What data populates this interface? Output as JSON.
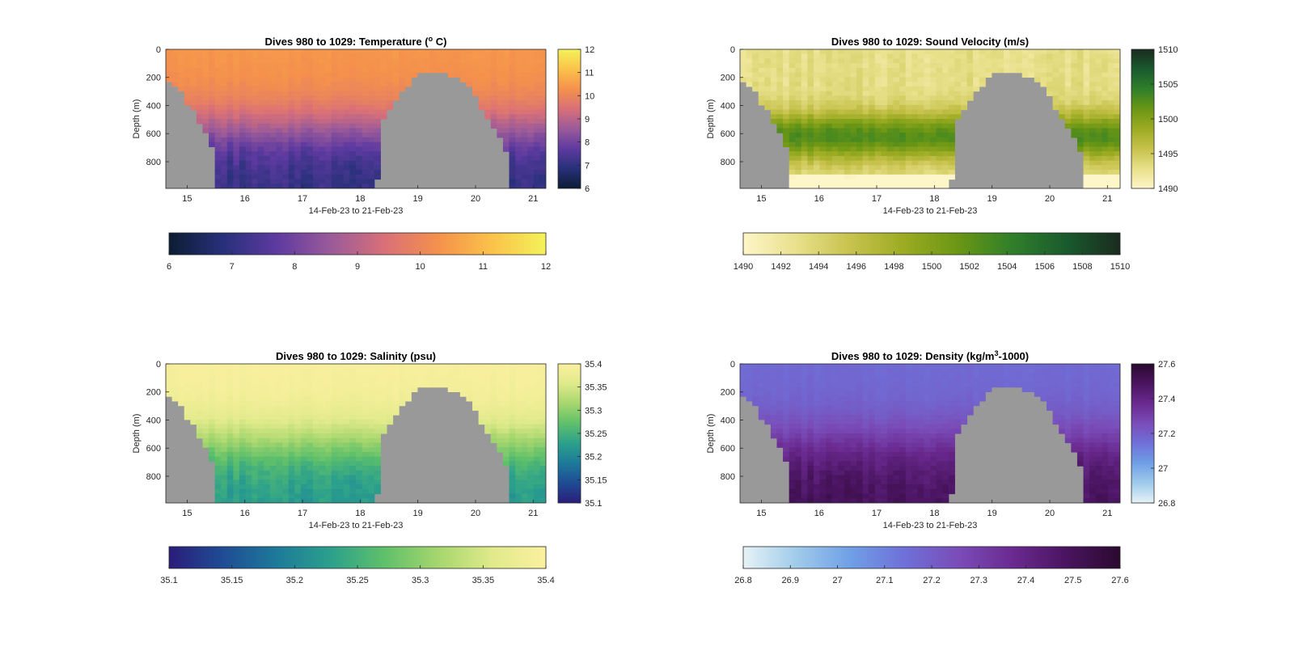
{
  "chart_data": [
    {
      "type": "heatmap",
      "title_prefix": "Dives 980 to 1029: Temperature (",
      "title_sup": "o",
      "title_suffix": " C)",
      "xlabel": "14-Feb-23 to 21-Feb-23",
      "ylabel": "Depth (m)",
      "xticks": [
        "15",
        "16",
        "17",
        "18",
        "19",
        "20",
        "21"
      ],
      "x_tick_values": [
        15,
        16,
        17,
        18,
        19,
        20,
        21
      ],
      "xlim": [
        14.63,
        21.22
      ],
      "yticks": [
        "0",
        "200",
        "400",
        "600",
        "800"
      ],
      "y_tick_values": [
        0,
        200,
        400,
        600,
        800
      ],
      "ylim": [
        0,
        990
      ],
      "y_reversed": true,
      "colorbar_ticks": [
        "6",
        "7",
        "8",
        "9",
        "10",
        "11",
        "12"
      ],
      "hcolorbar_ticks": [
        "6",
        "7",
        "8",
        "9",
        "10",
        "11",
        "12"
      ],
      "clim": [
        6,
        12
      ],
      "colormap": [
        "#0d1c33",
        "#27307a",
        "#5e3aa0",
        "#9a5a9a",
        "#d87078",
        "#f5914c",
        "#fbc24a",
        "#f3f359"
      ],
      "surface_value": 10.4,
      "deep_value": 7.0
    },
    {
      "type": "heatmap",
      "title": "Dives 980 to 1029: Sound Velocity (m/s)",
      "xlabel": "14-Feb-23 to 21-Feb-23",
      "ylabel": "Depth (m)",
      "xticks": [
        "15",
        "16",
        "17",
        "18",
        "19",
        "20",
        "21"
      ],
      "x_tick_values": [
        15,
        16,
        17,
        18,
        19,
        20,
        21
      ],
      "xlim": [
        14.63,
        21.22
      ],
      "yticks": [
        "0",
        "200",
        "400",
        "600",
        "800"
      ],
      "y_tick_values": [
        0,
        200,
        400,
        600,
        800
      ],
      "ylim": [
        0,
        990
      ],
      "y_reversed": true,
      "colorbar_ticks": [
        "1490",
        "1495",
        "1500",
        "1505",
        "1510"
      ],
      "hcolorbar_ticks": [
        "1490",
        "1492",
        "1494",
        "1496",
        "1498",
        "1500",
        "1502",
        "1504",
        "1506",
        "1508",
        "1510"
      ],
      "clim": [
        1490,
        1510
      ],
      "colormap": [
        "#fdf6c8",
        "#e8e08a",
        "#c7c24c",
        "#9bab22",
        "#6a9614",
        "#2f7f2a",
        "#1a5a2e",
        "#1a2b1e"
      ],
      "surface_value": 1492.0,
      "deep_value": 1494.0
    },
    {
      "type": "heatmap",
      "title": "Dives 980 to 1029: Salinity (psu)",
      "xlabel": "14-Feb-23 to 21-Feb-23",
      "ylabel": "Depth (m)",
      "xticks": [
        "15",
        "16",
        "17",
        "18",
        "19",
        "20",
        "21"
      ],
      "x_tick_values": [
        15,
        16,
        17,
        18,
        19,
        20,
        21
      ],
      "xlim": [
        14.63,
        21.22
      ],
      "yticks": [
        "0",
        "200",
        "400",
        "600",
        "800"
      ],
      "y_tick_values": [
        0,
        200,
        400,
        600,
        800
      ],
      "ylim": [
        0,
        990
      ],
      "y_reversed": true,
      "colorbar_ticks": [
        "35.1",
        "35.15",
        "35.2",
        "35.25",
        "35.3",
        "35.35",
        "35.4"
      ],
      "hcolorbar_ticks": [
        "35.1",
        "35.15",
        "35.2",
        "35.25",
        "35.3",
        "35.35",
        "35.4"
      ],
      "clim": [
        35.1,
        35.4
      ],
      "colormap": [
        "#2a1d7a",
        "#1f4c94",
        "#1d7a9a",
        "#2ba08c",
        "#5fc06a",
        "#a6d66e",
        "#e0ea8a",
        "#fbf0a0"
      ],
      "surface_value": 35.395,
      "deep_value": 35.22
    },
    {
      "type": "heatmap",
      "title_prefix": "Dives 980 to 1029: Density (kg/m",
      "title_sup": "3",
      "title_suffix": "-1000)",
      "xlabel": "14-Feb-23 to 21-Feb-23",
      "ylabel": "Depth (m)",
      "xticks": [
        "15",
        "16",
        "17",
        "18",
        "19",
        "20",
        "21"
      ],
      "x_tick_values": [
        15,
        16,
        17,
        18,
        19,
        20,
        21
      ],
      "xlim": [
        14.63,
        21.22
      ],
      "yticks": [
        "0",
        "200",
        "400",
        "600",
        "800"
      ],
      "y_tick_values": [
        0,
        200,
        400,
        600,
        800
      ],
      "ylim": [
        0,
        990
      ],
      "y_reversed": true,
      "colorbar_ticks": [
        "26.8",
        "27",
        "27.2",
        "27.4",
        "27.6"
      ],
      "hcolorbar_ticks": [
        "26.8",
        "26.9",
        "27",
        "27.1",
        "27.2",
        "27.3",
        "27.4",
        "27.5",
        "27.6"
      ],
      "clim": [
        26.8,
        27.6
      ],
      "colormap": [
        "#e6f2f6",
        "#9fcbea",
        "#6f9fe6",
        "#6f70d8",
        "#7a4cb8",
        "#6a2a90",
        "#4a1460",
        "#2a0a2e"
      ],
      "surface_value": 27.16,
      "deep_value": 27.5
    }
  ],
  "no_data_color": "#999999",
  "seafloor_profile": {
    "x": [
      14.63,
      14.7,
      14.8,
      14.9,
      15.0,
      15.1,
      15.2,
      15.3,
      15.4,
      15.5,
      15.6,
      15.8,
      16.0,
      16.5,
      17.0,
      17.5,
      18.0,
      18.2,
      18.3,
      18.35,
      18.4,
      18.5,
      18.6,
      18.7,
      18.8,
      18.9,
      19.0,
      19.1,
      19.2,
      19.3,
      19.4,
      19.5,
      19.6,
      19.7,
      19.8,
      19.9,
      20.0,
      20.1,
      20.2,
      20.3,
      20.4,
      20.5,
      20.6,
      20.65,
      20.7,
      20.8,
      20.9,
      21.0,
      21.1,
      21.22
    ],
    "depth": [
      230,
      250,
      290,
      330,
      380,
      440,
      520,
      600,
      700,
      990,
      990,
      990,
      990,
      990,
      990,
      990,
      990,
      930,
      600,
      540,
      480,
      420,
      360,
      300,
      250,
      200,
      160,
      170,
      180,
      180,
      180,
      185,
      190,
      220,
      260,
      320,
      380,
      440,
      500,
      560,
      640,
      740,
      990,
      990,
      990,
      990,
      990,
      990,
      990,
      990
    ]
  }
}
